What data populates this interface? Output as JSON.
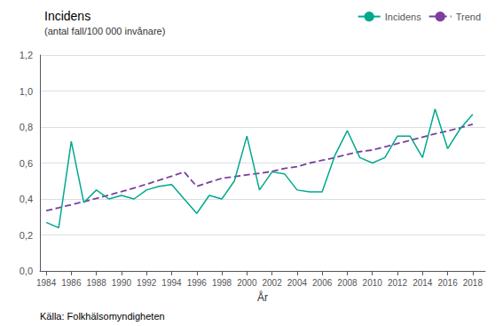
{
  "chart_data": {
    "type": "line",
    "title": "Incidens",
    "subtitle": "(antal fall/100 000 invånare)",
    "xlabel": "År",
    "x": [
      1984,
      1985,
      1986,
      1987,
      1988,
      1989,
      1990,
      1991,
      1992,
      1993,
      1994,
      1995,
      1996,
      1997,
      1998,
      1999,
      2000,
      2001,
      2002,
      2003,
      2004,
      2005,
      2006,
      2007,
      2008,
      2009,
      2010,
      2011,
      2012,
      2013,
      2014,
      2015,
      2016,
      2017,
      2018
    ],
    "series": [
      {
        "name": "Incidens",
        "color": "#00A88E",
        "line_style": "solid",
        "values": [
          0.27,
          0.24,
          0.72,
          0.38,
          0.45,
          0.4,
          0.42,
          0.4,
          0.45,
          0.47,
          0.48,
          0.4,
          0.32,
          0.42,
          0.4,
          0.5,
          0.75,
          0.45,
          0.55,
          0.54,
          0.45,
          0.44,
          0.44,
          0.64,
          0.78,
          0.63,
          0.6,
          0.63,
          0.75,
          0.75,
          0.63,
          0.9,
          0.68,
          0.79,
          0.87
        ]
      },
      {
        "name": "Trend",
        "color": "#7B3F9E",
        "line_style": "dashed",
        "values": [
          0.335,
          0.351,
          0.368,
          0.385,
          0.403,
          0.422,
          0.441,
          0.461,
          0.482,
          0.504,
          0.527,
          0.55,
          0.47,
          0.493,
          0.515,
          0.524,
          0.534,
          0.543,
          0.553,
          0.57,
          0.58,
          0.6,
          0.615,
          0.63,
          0.648,
          0.663,
          0.672,
          0.69,
          0.708,
          0.726,
          0.744,
          0.762,
          0.778,
          0.796,
          0.815
        ]
      }
    ],
    "xlim": [
      1983.5,
      2019.0
    ],
    "xticks": [
      1984,
      1986,
      1988,
      1990,
      1992,
      1994,
      1996,
      1998,
      2000,
      2002,
      2004,
      2006,
      2008,
      2010,
      2012,
      2014,
      2016,
      2018
    ],
    "ylim": [
      0.0,
      1.2
    ],
    "yticks": [
      {
        "value": 0.0,
        "label": "0,0"
      },
      {
        "value": 0.2,
        "label": "0,2"
      },
      {
        "value": 0.4,
        "label": "0,4"
      },
      {
        "value": 0.6,
        "label": "0,6"
      },
      {
        "value": 0.8,
        "label": "0,8"
      },
      {
        "value": 1.0,
        "label": "1,0"
      },
      {
        "value": 1.2,
        "label": "1,2"
      }
    ],
    "grid": true,
    "legend": "top",
    "annotation": "Källa: Folkhälsomyndigheten"
  }
}
